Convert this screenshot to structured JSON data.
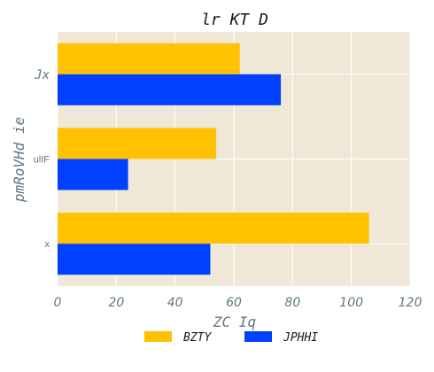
{
  "chart_data": {
    "type": "bar",
    "orientation": "horizontal",
    "title": "lr KT D",
    "xlabel": "ZC Iq",
    "ylabel": "pmRoVHd ie",
    "categories": [
      "Jx",
      "ulIF",
      "x"
    ],
    "series": [
      {
        "name": "BZTY",
        "values": [
          62,
          54,
          106
        ],
        "color": "#ffc100"
      },
      {
        "name": "JPHHI",
        "values": [
          76,
          24,
          52
        ],
        "color": "#0040ff"
      }
    ],
    "xlim": [
      0,
      120
    ],
    "xticks": [
      "0",
      "20",
      "40",
      "60",
      "80",
      "100",
      "120"
    ],
    "grid": true,
    "legend": "bottom-center",
    "colors": {
      "plot_background": "#efe8d6",
      "grid": "#ffffff",
      "axis_text": "#607882"
    }
  }
}
